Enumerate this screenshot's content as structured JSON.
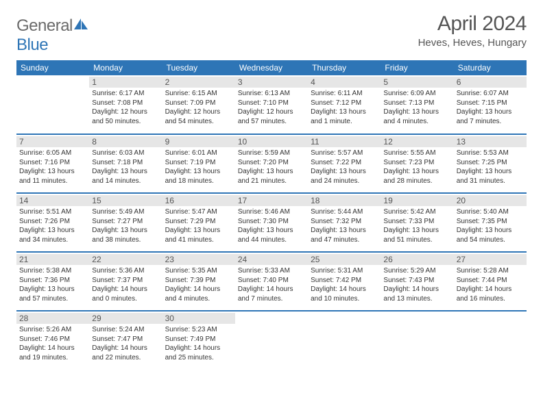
{
  "brand": {
    "part1": "General",
    "part2": "Blue"
  },
  "title": "April 2024",
  "location": "Heves, Heves, Hungary",
  "colors": {
    "header_bg": "#2e75b6",
    "header_fg": "#ffffff",
    "daynum_bg": "#e6e6e6",
    "text": "#333333",
    "rule": "#2e75b6",
    "title_color": "#555555"
  },
  "weekdays": [
    "Sunday",
    "Monday",
    "Tuesday",
    "Wednesday",
    "Thursday",
    "Friday",
    "Saturday"
  ],
  "weeks": [
    [
      null,
      {
        "n": "1",
        "sunrise": "6:17 AM",
        "sunset": "7:08 PM",
        "daylight": "12 hours and 50 minutes."
      },
      {
        "n": "2",
        "sunrise": "6:15 AM",
        "sunset": "7:09 PM",
        "daylight": "12 hours and 54 minutes."
      },
      {
        "n": "3",
        "sunrise": "6:13 AM",
        "sunset": "7:10 PM",
        "daylight": "12 hours and 57 minutes."
      },
      {
        "n": "4",
        "sunrise": "6:11 AM",
        "sunset": "7:12 PM",
        "daylight": "13 hours and 1 minute."
      },
      {
        "n": "5",
        "sunrise": "6:09 AM",
        "sunset": "7:13 PM",
        "daylight": "13 hours and 4 minutes."
      },
      {
        "n": "6",
        "sunrise": "6:07 AM",
        "sunset": "7:15 PM",
        "daylight": "13 hours and 7 minutes."
      }
    ],
    [
      {
        "n": "7",
        "sunrise": "6:05 AM",
        "sunset": "7:16 PM",
        "daylight": "13 hours and 11 minutes."
      },
      {
        "n": "8",
        "sunrise": "6:03 AM",
        "sunset": "7:18 PM",
        "daylight": "13 hours and 14 minutes."
      },
      {
        "n": "9",
        "sunrise": "6:01 AM",
        "sunset": "7:19 PM",
        "daylight": "13 hours and 18 minutes."
      },
      {
        "n": "10",
        "sunrise": "5:59 AM",
        "sunset": "7:20 PM",
        "daylight": "13 hours and 21 minutes."
      },
      {
        "n": "11",
        "sunrise": "5:57 AM",
        "sunset": "7:22 PM",
        "daylight": "13 hours and 24 minutes."
      },
      {
        "n": "12",
        "sunrise": "5:55 AM",
        "sunset": "7:23 PM",
        "daylight": "13 hours and 28 minutes."
      },
      {
        "n": "13",
        "sunrise": "5:53 AM",
        "sunset": "7:25 PM",
        "daylight": "13 hours and 31 minutes."
      }
    ],
    [
      {
        "n": "14",
        "sunrise": "5:51 AM",
        "sunset": "7:26 PM",
        "daylight": "13 hours and 34 minutes."
      },
      {
        "n": "15",
        "sunrise": "5:49 AM",
        "sunset": "7:27 PM",
        "daylight": "13 hours and 38 minutes."
      },
      {
        "n": "16",
        "sunrise": "5:47 AM",
        "sunset": "7:29 PM",
        "daylight": "13 hours and 41 minutes."
      },
      {
        "n": "17",
        "sunrise": "5:46 AM",
        "sunset": "7:30 PM",
        "daylight": "13 hours and 44 minutes."
      },
      {
        "n": "18",
        "sunrise": "5:44 AM",
        "sunset": "7:32 PM",
        "daylight": "13 hours and 47 minutes."
      },
      {
        "n": "19",
        "sunrise": "5:42 AM",
        "sunset": "7:33 PM",
        "daylight": "13 hours and 51 minutes."
      },
      {
        "n": "20",
        "sunrise": "5:40 AM",
        "sunset": "7:35 PM",
        "daylight": "13 hours and 54 minutes."
      }
    ],
    [
      {
        "n": "21",
        "sunrise": "5:38 AM",
        "sunset": "7:36 PM",
        "daylight": "13 hours and 57 minutes."
      },
      {
        "n": "22",
        "sunrise": "5:36 AM",
        "sunset": "7:37 PM",
        "daylight": "14 hours and 0 minutes."
      },
      {
        "n": "23",
        "sunrise": "5:35 AM",
        "sunset": "7:39 PM",
        "daylight": "14 hours and 4 minutes."
      },
      {
        "n": "24",
        "sunrise": "5:33 AM",
        "sunset": "7:40 PM",
        "daylight": "14 hours and 7 minutes."
      },
      {
        "n": "25",
        "sunrise": "5:31 AM",
        "sunset": "7:42 PM",
        "daylight": "14 hours and 10 minutes."
      },
      {
        "n": "26",
        "sunrise": "5:29 AM",
        "sunset": "7:43 PM",
        "daylight": "14 hours and 13 minutes."
      },
      {
        "n": "27",
        "sunrise": "5:28 AM",
        "sunset": "7:44 PM",
        "daylight": "14 hours and 16 minutes."
      }
    ],
    [
      {
        "n": "28",
        "sunrise": "5:26 AM",
        "sunset": "7:46 PM",
        "daylight": "14 hours and 19 minutes."
      },
      {
        "n": "29",
        "sunrise": "5:24 AM",
        "sunset": "7:47 PM",
        "daylight": "14 hours and 22 minutes."
      },
      {
        "n": "30",
        "sunrise": "5:23 AM",
        "sunset": "7:49 PM",
        "daylight": "14 hours and 25 minutes."
      },
      null,
      null,
      null,
      null
    ]
  ],
  "labels": {
    "sunrise": "Sunrise:",
    "sunset": "Sunset:",
    "daylight": "Daylight:"
  }
}
